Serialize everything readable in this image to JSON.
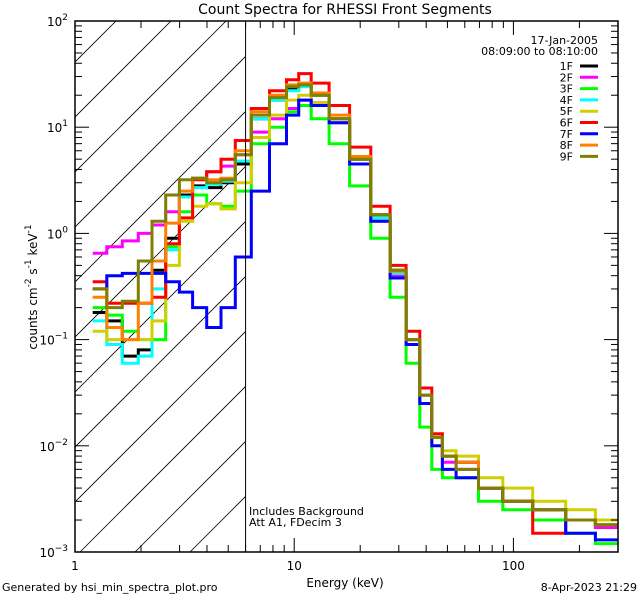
{
  "chart_data": {
    "type": "line",
    "subtype": "histogram-step",
    "title": "Count Spectra for RHESSI Front Segments",
    "xlabel": "Energy (keV)",
    "ylabel": "counts cm^-2 s^-1 keV^-1",
    "ylabel_parts": {
      "base": "counts cm",
      "sup1": "-2",
      "mid1": " s",
      "sup2": "-1",
      "mid2": " keV",
      "sup3": "-1"
    },
    "xscale": "log",
    "yscale": "log",
    "xlim": [
      1,
      300
    ],
    "ylim": [
      0.001,
      100
    ],
    "x_tick_labels": [
      "1",
      "10",
      "100"
    ],
    "x_tick_values": [
      1,
      10,
      100
    ],
    "y_tick_labels": [
      {
        "base": "10",
        "exp": "2",
        "value": 100
      },
      {
        "base": "10",
        "exp": "1",
        "value": 10
      },
      {
        "base": "10",
        "exp": "0",
        "value": 1
      },
      {
        "base": "10",
        "exp": "−1",
        "value": 0.1
      },
      {
        "base": "10",
        "exp": "−2",
        "value": 0.01
      },
      {
        "base": "10",
        "exp": "−3",
        "value": 0.001
      }
    ],
    "grid": false,
    "legend_position": "top-right",
    "legend_header": [
      "17-Jan-2005",
      "08:09:00 to 08:10:00"
    ],
    "annotations": [
      "Includes Background",
      "Att A1, FDecim  3"
    ],
    "hatched_region": {
      "x_from": 1,
      "x_to": 6,
      "description": "excluded low-energy region (diagonal hatching)"
    },
    "cutoff_line_x": 6,
    "series": [
      {
        "name": "1F",
        "color": "#000000",
        "x": [
          1.3,
          1.5,
          1.8,
          2.1,
          2.4,
          2.8,
          3.2,
          3.7,
          4.3,
          5,
          5.8,
          7,
          8.5,
          10,
          11,
          13,
          16,
          20,
          25,
          30,
          35,
          40,
          45,
          50,
          60,
          80,
          100,
          150,
          200,
          280
        ],
        "y": [
          0.18,
          0.15,
          0.07,
          0.08,
          0.45,
          0.9,
          2.3,
          2.8,
          2.7,
          3.0,
          4.5,
          12,
          18,
          23,
          25,
          20,
          12,
          5,
          1.5,
          0.45,
          0.1,
          0.03,
          0.012,
          0.008,
          0.007,
          0.004,
          0.003,
          0.0025,
          0.002,
          0.0018
        ]
      },
      {
        "name": "2F",
        "color": "#ff00ff",
        "x": [
          1.3,
          1.5,
          1.8,
          2.1,
          2.4,
          2.8,
          3.2,
          3.7,
          4.3,
          5,
          5.8,
          7,
          8.5,
          10,
          11,
          13,
          16,
          20,
          25,
          30,
          35,
          40,
          45,
          50,
          60,
          80,
          100,
          150,
          200,
          280
        ],
        "y": [
          0.65,
          0.75,
          0.85,
          1.0,
          1.2,
          1.6,
          2.2,
          3.3,
          3.8,
          4.3,
          5.5,
          9,
          12,
          15,
          18,
          17,
          11,
          5,
          1.4,
          0.4,
          0.1,
          0.03,
          0.012,
          0.007,
          0.006,
          0.004,
          0.003,
          0.0025,
          0.002,
          0.0017
        ]
      },
      {
        "name": "3F",
        "color": "#00ff00",
        "x": [
          1.3,
          1.5,
          1.8,
          2.1,
          2.4,
          2.8,
          3.2,
          3.7,
          4.3,
          5,
          5.8,
          7,
          8.5,
          10,
          11,
          13,
          16,
          20,
          25,
          30,
          35,
          40,
          45,
          50,
          60,
          80,
          100,
          150,
          200,
          280
        ],
        "y": [
          0.2,
          0.17,
          0.12,
          0.1,
          0.1,
          0.75,
          1.6,
          2.3,
          1.9,
          1.8,
          2.5,
          7,
          10,
          14,
          16,
          12,
          7,
          2.8,
          0.9,
          0.25,
          0.06,
          0.015,
          0.006,
          0.005,
          0.005,
          0.003,
          0.0025,
          0.002,
          0.0015,
          0.0012
        ]
      },
      {
        "name": "4F",
        "color": "#00ffff",
        "x": [
          1.3,
          1.5,
          1.8,
          2.1,
          2.4,
          2.8,
          3.2,
          3.7,
          4.3,
          5,
          5.8,
          7,
          8.5,
          10,
          11,
          13,
          16,
          20,
          25,
          30,
          35,
          40,
          45,
          50,
          60,
          80,
          100,
          150,
          200,
          280
        ],
        "y": [
          0.15,
          0.09,
          0.06,
          0.07,
          0.3,
          0.7,
          2.2,
          2.7,
          2.9,
          3.1,
          4.8,
          12,
          18,
          22,
          24,
          20,
          12,
          5,
          1.4,
          0.42,
          0.1,
          0.03,
          0.012,
          0.008,
          0.007,
          0.004,
          0.003,
          0.0025,
          0.002,
          0.0018
        ]
      },
      {
        "name": "5F",
        "color": "#d0d000",
        "x": [
          1.3,
          1.5,
          1.8,
          2.1,
          2.4,
          2.8,
          3.2,
          3.7,
          4.3,
          5,
          5.8,
          7,
          8.5,
          10,
          11,
          13,
          16,
          20,
          25,
          30,
          35,
          40,
          45,
          50,
          60,
          80,
          100,
          150,
          200,
          280
        ],
        "y": [
          0.12,
          0.1,
          0.1,
          0.1,
          0.15,
          0.5,
          1.3,
          1.8,
          1.9,
          1.7,
          3.0,
          8,
          13,
          18,
          20,
          17,
          11,
          4.5,
          1.3,
          0.38,
          0.09,
          0.025,
          0.012,
          0.009,
          0.008,
          0.005,
          0.004,
          0.003,
          0.0025,
          0.002
        ]
      },
      {
        "name": "6F",
        "color": "#ff0000",
        "x": [
          1.3,
          1.5,
          1.8,
          2.1,
          2.4,
          2.8,
          3.2,
          3.7,
          4.3,
          5,
          5.8,
          7,
          8.5,
          10,
          11,
          13,
          16,
          20,
          25,
          30,
          35,
          40,
          45,
          50,
          60,
          80,
          100,
          150,
          200,
          280
        ],
        "y": [
          0.35,
          0.22,
          0.22,
          0.22,
          0.25,
          0.8,
          1.4,
          3.2,
          3.8,
          5.0,
          7.5,
          15,
          22,
          28,
          32,
          26,
          16,
          6.5,
          1.8,
          0.5,
          0.12,
          0.035,
          0.013,
          0.008,
          0.007,
          0.004,
          0.003,
          0.0015,
          0.002,
          0.0018
        ]
      },
      {
        "name": "7F",
        "color": "#0000ff",
        "x": [
          1.3,
          1.5,
          1.8,
          2.1,
          2.4,
          2.8,
          3.2,
          3.7,
          4.3,
          5,
          5.8,
          7,
          8.5,
          10,
          11,
          13,
          16,
          20,
          25,
          30,
          35,
          40,
          45,
          50,
          60,
          80,
          100,
          150,
          200,
          280
        ],
        "y": [
          0.3,
          0.4,
          0.42,
          0.42,
          0.42,
          0.35,
          0.28,
          0.2,
          0.13,
          0.2,
          0.6,
          2.5,
          7,
          13,
          18,
          16,
          11,
          4.5,
          1.3,
          0.38,
          0.09,
          0.025,
          0.01,
          0.006,
          0.005,
          0.004,
          0.003,
          0.0025,
          0.0015,
          0.0013
        ]
      },
      {
        "name": "8F",
        "color": "#ff8000",
        "x": [
          1.3,
          1.5,
          1.8,
          2.1,
          2.4,
          2.8,
          3.2,
          3.7,
          4.3,
          5,
          5.8,
          7,
          8.5,
          10,
          11,
          13,
          16,
          20,
          25,
          30,
          35,
          40,
          45,
          50,
          60,
          80,
          100,
          150,
          200,
          280
        ],
        "y": [
          0.25,
          0.13,
          0.1,
          0.22,
          0.55,
          1.25,
          2.5,
          3.3,
          3.2,
          3.3,
          6.0,
          14,
          20,
          25,
          26,
          21,
          13,
          5.3,
          1.5,
          0.44,
          0.1,
          0.03,
          0.012,
          0.008,
          0.007,
          0.004,
          0.003,
          0.0025,
          0.002,
          0.0018
        ]
      },
      {
        "name": "9F",
        "color": "#808000",
        "x": [
          1.3,
          1.5,
          1.8,
          2.1,
          2.4,
          2.8,
          3.2,
          3.7,
          4.3,
          5,
          5.8,
          7,
          8.5,
          10,
          11,
          13,
          16,
          20,
          25,
          30,
          35,
          40,
          45,
          50,
          60,
          80,
          100,
          150,
          200,
          280
        ],
        "y": [
          0.3,
          0.2,
          0.23,
          0.55,
          1.3,
          2.3,
          3.2,
          3.3,
          3.0,
          3.2,
          5.5,
          13,
          19,
          24,
          25,
          20,
          12,
          5,
          1.5,
          0.45,
          0.1,
          0.03,
          0.012,
          0.008,
          0.006,
          0.004,
          0.003,
          0.0025,
          0.002,
          0.0018
        ]
      }
    ]
  },
  "footer": {
    "generated_by": "Generated by hsi_min_spectra_plot.pro",
    "timestamp": "8-Apr-2023 21:29"
  }
}
